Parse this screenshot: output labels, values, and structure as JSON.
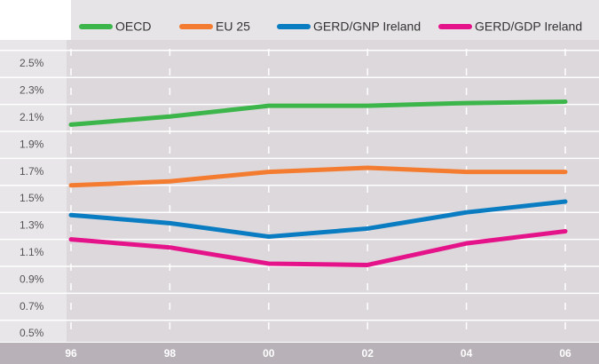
{
  "chart_data": {
    "type": "line",
    "categories": [
      "96",
      "98",
      "00",
      "02",
      "04",
      "06"
    ],
    "series": [
      {
        "name": "OECD",
        "color": "#3cb54a",
        "values": [
          2.05,
          2.11,
          2.19,
          2.19,
          2.21,
          2.22
        ]
      },
      {
        "name": "EU 25",
        "color": "#f47c30",
        "values": [
          1.6,
          1.63,
          1.7,
          1.73,
          1.7,
          1.7
        ]
      },
      {
        "name": "GERD/GNP Ireland",
        "color": "#0a7cc1",
        "values": [
          1.38,
          1.32,
          1.22,
          1.28,
          1.4,
          1.48
        ]
      },
      {
        "name": "GERD/GDP Ireland",
        "color": "#e5138a",
        "values": [
          1.2,
          1.14,
          1.02,
          1.01,
          1.17,
          1.26
        ]
      }
    ],
    "ylim": [
      0.45,
      2.65
    ],
    "yticks": [
      {
        "value": 0.5,
        "label": "0.5%"
      },
      {
        "value": 0.7,
        "label": "0.7%"
      },
      {
        "value": 0.9,
        "label": "0.9%"
      },
      {
        "value": 1.1,
        "label": "1.1%"
      },
      {
        "value": 1.3,
        "label": "1.3%"
      },
      {
        "value": 1.5,
        "label": "1.5%"
      },
      {
        "value": 1.7,
        "label": "1.7%"
      },
      {
        "value": 1.9,
        "label": "1.9%"
      },
      {
        "value": 2.1,
        "label": "2.1%"
      },
      {
        "value": 2.3,
        "label": "2.3%"
      },
      {
        "value": 2.5,
        "label": "2.5%"
      }
    ],
    "legend": "top"
  }
}
